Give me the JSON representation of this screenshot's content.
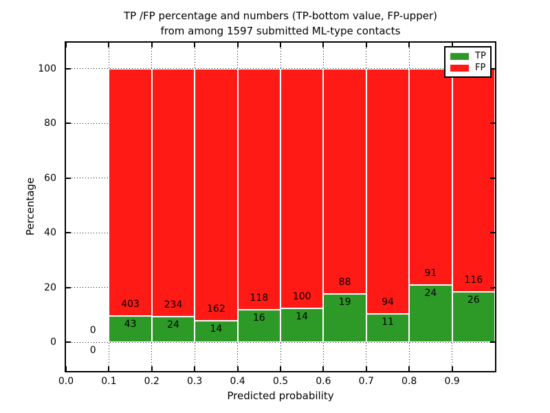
{
  "figure": {
    "title_line1": "TP /FP percentage and numbers (TP-bottom value, FP-upper)",
    "title_line2": "from among 1597 submitted ML-type contacts",
    "xlabel": "Predicted probability",
    "ylabel": "Percentage"
  },
  "legend": {
    "items": [
      {
        "label": "TP",
        "color": "#2d9a27"
      },
      {
        "label": "FP",
        "color": "#ff1a15"
      }
    ],
    "position": "upper right"
  },
  "colors": {
    "tp_green": "#2d9a27",
    "fp_red": "#ff1a15",
    "bar_edge": "#ffffff",
    "axis": "#000000",
    "background": "#ffffff"
  },
  "chart_data": {
    "type": "bar",
    "subtype": "stacked-percentage",
    "title": "TP /FP percentage and numbers (TP-bottom value, FP-upper) from among 1597 submitted ML-type contacts",
    "xlabel": "Predicted probability",
    "ylabel": "Percentage",
    "total_contacts": 1597,
    "bin_width": 0.1,
    "bin_starts": [
      0.0,
      0.1,
      0.2,
      0.3,
      0.4,
      0.5,
      0.6,
      0.7,
      0.8,
      0.9
    ],
    "series": [
      {
        "name": "TP",
        "color": "#2d9a27",
        "counts": [
          0,
          43,
          24,
          14,
          16,
          14,
          19,
          11,
          24,
          26
        ]
      },
      {
        "name": "FP",
        "color": "#ff1a15",
        "counts": [
          0,
          403,
          234,
          162,
          118,
          100,
          88,
          94,
          91,
          116
        ]
      }
    ],
    "bars_normalized_to": 100,
    "xlim": [
      0.0,
      1.0
    ],
    "ylim": [
      -10.5,
      109.5
    ],
    "xticks": [
      0.0,
      0.1,
      0.2,
      0.3,
      0.4,
      0.5,
      0.6,
      0.7,
      0.8,
      0.9
    ],
    "xtick_labels": [
      "0.0",
      "0.1",
      "0.2",
      "0.3",
      "0.4",
      "0.5",
      "0.6",
      "0.7",
      "0.8",
      "0.9"
    ],
    "yticks": [
      0,
      20,
      40,
      60,
      80,
      100
    ],
    "ytick_labels": [
      "0",
      "20",
      "40",
      "60",
      "80",
      "100"
    ],
    "grid": "dotted",
    "legend_position": "upper right"
  }
}
